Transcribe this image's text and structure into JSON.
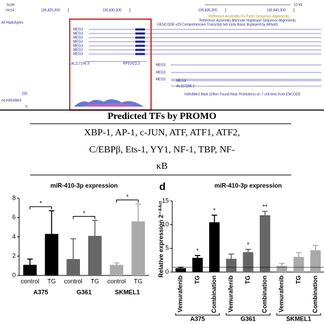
{
  "panel_label": "d",
  "browser": {
    "scale_label": "Scale",
    "chrom": "chr14:",
    "positions": [
      "100,825,000",
      "100,830,000",
      "100,835,000",
      "100,840,000"
    ],
    "scale_bar": "10 kb",
    "track_label": "All Haplotypes",
    "tracks": [
      "Reference Assembly Fix Patch Sequence Alignments",
      "Reference Assembly Alternate Haplotype Sequence Alignments",
      "GENCODE v29 Comprehensive Transcript Set (only Basic displayed by default)"
    ],
    "genes": [
      "MEG3",
      "MEG3",
      "MEG3",
      "MEG3",
      "MEG3",
      "MEG3",
      "MEG3",
      "AL117190.3",
      "RF01622.3",
      "MEG3",
      "MEG3",
      "MEG3",
      "MEG3",
      "AL117190.1"
    ],
    "signal_label": "H3K4Me3 Mark (Often Found Near Promoters) on 7 cell lines from ENCODE",
    "signal_side": "ed H3K4Me3",
    "signal_max": "150",
    "signal_min": "0"
  },
  "tf_table": {
    "title": "Predicted TFs by PROMO",
    "lines": [
      "XBP-1, AP-1, c-JUN, ATF, ATF1, ATF2,",
      "C/EBPβ, Ets-1, YY1, NF-1, TBP, NF-",
      "κB"
    ]
  },
  "chart_data": [
    {
      "type": "bar",
      "title": "miR-410-3p expression",
      "categories": [
        "control",
        "TG",
        "control",
        "TG",
        "control",
        "TG"
      ],
      "groups": [
        "A375",
        "G361",
        "SKMEL1"
      ],
      "values": [
        1.1,
        4.3,
        1.7,
        4.1,
        1.1,
        5.6
      ],
      "errors": [
        0.6,
        2.4,
        2.1,
        1.6,
        0.2,
        1.8
      ],
      "colors": [
        "#000000",
        "#000000",
        "#666666",
        "#666666",
        "#aaaaaa",
        "#aaaaaa"
      ],
      "group_stars": [
        "*",
        "*",
        "*"
      ],
      "ylim": [
        0,
        8
      ],
      "yticks": [
        0,
        2,
        4,
        6,
        8
      ]
    },
    {
      "type": "bar",
      "title": "miR-410-3p expression",
      "ylabel": "Relative expression 2⁻ᐞᐞᶜᵗ",
      "categories": [
        "Vemurafenib",
        "TG",
        "Combination",
        "Vemurafenib",
        "TG",
        "Combination",
        "Vemurafenib",
        "TG",
        "Combination"
      ],
      "groups": [
        "A375",
        "G361",
        "SKMEL1"
      ],
      "values": [
        0.8,
        3.0,
        10.5,
        2.8,
        4.2,
        12.0,
        1.3,
        3.2,
        4.6
      ],
      "errors": [
        0.2,
        0.5,
        1.5,
        1.0,
        0.6,
        0.8,
        0.5,
        0.9,
        1.0
      ],
      "colors": [
        "#000000",
        "#000000",
        "#000000",
        "#666666",
        "#666666",
        "#666666",
        "#aaaaaa",
        "#aaaaaa",
        "#aaaaaa"
      ],
      "stars": [
        null,
        "*",
        "*",
        null,
        "*",
        "**",
        null,
        null,
        null
      ],
      "reference_line": 1,
      "ylim": [
        0,
        15
      ],
      "yticks": [
        0,
        5,
        10,
        15
      ]
    }
  ]
}
